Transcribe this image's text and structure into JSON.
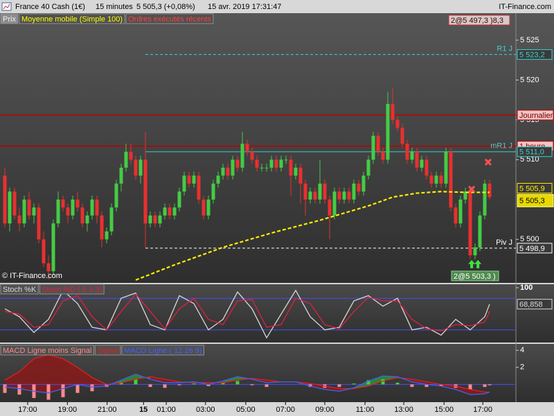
{
  "header": {
    "items": [
      "France 40 Cash (1€)",
      "15 minutes",
      "5 505,3 (+0,08%)",
      "15 avr. 2019 17:31:47"
    ],
    "site": "IT-Finance.com"
  },
  "chart_data": [
    {
      "type": "candlestick",
      "legend": [
        {
          "name": "Prix",
          "color": "#f0f0f0"
        },
        {
          "name": "Moyenne mobile (Simple 100)",
          "color": "#ffff00"
        },
        {
          "name": "Ordres exécutés récents",
          "color": "#ff4040"
        }
      ],
      "xlim": [
        -1,
        105.43
      ],
      "ylim": [
        5494.8,
        5528.3
      ],
      "yticks": [
        {
          "value": 5500,
          "label": "5 500"
        },
        {
          "value": 5510,
          "label": "5 510"
        },
        {
          "value": 5515,
          "label": "5 515"
        },
        {
          "value": 5520,
          "label": "5 520"
        },
        {
          "value": 5525,
          "label": "5 525"
        }
      ],
      "up_color": "#44cc44",
      "down_color": "#e83030",
      "candles": [
        [
          5508,
          5509,
          5501.5,
          5502
        ],
        [
          5502,
          5506.5,
          5501,
          5506
        ],
        [
          5506,
          5506.5,
          5502.5,
          5503
        ],
        [
          5503,
          5504,
          5501,
          5502
        ],
        [
          5502,
          5505.5,
          5501.5,
          5505
        ],
        [
          5505,
          5506,
          5502.5,
          5503
        ],
        [
          5503,
          5504.5,
          5502,
          5504
        ],
        [
          5504,
          5504.5,
          5499.5,
          5500
        ],
        [
          5500,
          5501,
          5496.5,
          5497
        ],
        [
          5497,
          5498,
          5495,
          5496
        ],
        [
          5496,
          5502.5,
          5495.5,
          5502
        ],
        [
          5502,
          5506,
          5501.5,
          5505
        ],
        [
          5505,
          5505.5,
          5503.5,
          5504
        ],
        [
          5504,
          5504.5,
          5502,
          5503
        ],
        [
          5503,
          5505.5,
          5502.5,
          5505
        ],
        [
          5505,
          5506,
          5503.5,
          5504
        ],
        [
          5504,
          5504.5,
          5501.5,
          5502
        ],
        [
          5502,
          5503.5,
          5501,
          5503
        ],
        [
          5503,
          5505.5,
          5502.5,
          5505
        ],
        [
          5505,
          5505.5,
          5502,
          5503
        ],
        [
          5503,
          5503.5,
          5499,
          5500
        ],
        [
          5500,
          5501.5,
          5499.5,
          5501
        ],
        [
          5501,
          5504.5,
          5500.5,
          5504
        ],
        [
          5504,
          5507.5,
          5503.5,
          5507
        ],
        [
          5507,
          5509.5,
          5506,
          5509
        ],
        [
          5509,
          5512,
          5508.5,
          5511
        ],
        [
          5511,
          5512,
          5509.5,
          5510
        ],
        [
          5510,
          5510.5,
          5507.5,
          5508
        ],
        [
          5508,
          5510.5,
          5507,
          5510
        ],
        [
          5510,
          5513.5,
          5499,
          5502
        ],
        [
          5502,
          5503.5,
          5501.5,
          5503
        ],
        [
          5503,
          5503.5,
          5501.5,
          5502
        ],
        [
          5502,
          5503.5,
          5501.5,
          5503
        ],
        [
          5503,
          5504.5,
          5502.5,
          5504
        ],
        [
          5504,
          5504.5,
          5502.5,
          5503
        ],
        [
          5503,
          5504.5,
          5502.5,
          5504
        ],
        [
          5504,
          5506.5,
          5503.5,
          5506
        ],
        [
          5506,
          5508.5,
          5505.5,
          5508
        ],
        [
          5508,
          5508.5,
          5506.5,
          5507
        ],
        [
          5507,
          5508.5,
          5506.5,
          5508
        ],
        [
          5508,
          5508.5,
          5504.5,
          5505
        ],
        [
          5505,
          5505.5,
          5502.5,
          5503
        ],
        [
          5503,
          5505.5,
          5502.5,
          5505
        ],
        [
          5505,
          5507.5,
          5504.5,
          5507
        ],
        [
          5507,
          5508.5,
          5506.5,
          5508
        ],
        [
          5508,
          5509.5,
          5507.5,
          5509
        ],
        [
          5509,
          5509.5,
          5507.5,
          5508
        ],
        [
          5508,
          5510.5,
          5507.5,
          5510
        ],
        [
          5510,
          5510.5,
          5508.5,
          5509
        ],
        [
          5509,
          5513.5,
          5508.5,
          5512
        ],
        [
          5512,
          5512.5,
          5510.5,
          5511
        ],
        [
          5511,
          5511.5,
          5509.5,
          5510
        ],
        [
          5510,
          5510.5,
          5508.5,
          5509
        ],
        [
          5509,
          5509.5,
          5508.5,
          5509
        ],
        [
          5509,
          5509.5,
          5508.5,
          5509
        ],
        [
          5509,
          5510.5,
          5508.5,
          5510
        ],
        [
          5510,
          5510.5,
          5508.5,
          5509
        ],
        [
          5509,
          5510.5,
          5508.5,
          5510
        ],
        [
          5510,
          5510.5,
          5509.5,
          5510
        ],
        [
          5510,
          5510.5,
          5505.5,
          5508
        ],
        [
          5508,
          5509.5,
          5507.5,
          5509
        ],
        [
          5509,
          5509.5,
          5504.5,
          5507
        ],
        [
          5507,
          5507.5,
          5503,
          5505
        ],
        [
          5505,
          5506.5,
          5504.5,
          5506
        ],
        [
          5506,
          5506.5,
          5504.5,
          5505
        ],
        [
          5505,
          5510,
          5504.5,
          5507
        ],
        [
          5507,
          5507.5,
          5504.5,
          5505
        ],
        [
          5505,
          5505.5,
          5500,
          5503
        ],
        [
          5503,
          5506.5,
          5502.5,
          5506
        ],
        [
          5506,
          5506.5,
          5504.5,
          5505
        ],
        [
          5505,
          5506.5,
          5504.5,
          5506
        ],
        [
          5506,
          5506.5,
          5504.5,
          5505
        ],
        [
          5505,
          5507.5,
          5504.5,
          5507
        ],
        [
          5507,
          5507.5,
          5505.5,
          5506
        ],
        [
          5506,
          5508.5,
          5505.5,
          5508
        ],
        [
          5508,
          5510.5,
          5507.5,
          5510
        ],
        [
          5510,
          5513.5,
          5509.5,
          5513
        ],
        [
          5513,
          5513.5,
          5510.5,
          5511
        ],
        [
          5511,
          5511.5,
          5509.5,
          5510
        ],
        [
          5510,
          5518.5,
          5509.5,
          5517
        ],
        [
          5517,
          5519,
          5514.5,
          5515
        ],
        [
          5515,
          5515.5,
          5513.5,
          5514
        ],
        [
          5514,
          5514.5,
          5511.5,
          5512
        ],
        [
          5512,
          5512.5,
          5509.5,
          5510
        ],
        [
          5510,
          5511.5,
          5509.5,
          5511
        ],
        [
          5511,
          5511.5,
          5508.5,
          5509
        ],
        [
          5509,
          5510.5,
          5508.5,
          5510
        ],
        [
          5510,
          5510.5,
          5507.5,
          5508
        ],
        [
          5508,
          5508.5,
          5506.5,
          5507
        ],
        [
          5507,
          5508.5,
          5506.5,
          5508
        ],
        [
          5508,
          5508.5,
          5506.5,
          5507
        ],
        [
          5507,
          5511.5,
          5506.5,
          5511
        ],
        [
          5511,
          5511.5,
          5503.5,
          5504
        ],
        [
          5504,
          5504.5,
          5501.5,
          5502
        ],
        [
          5502,
          5505.5,
          5501.5,
          5505
        ],
        [
          5505,
          5506.5,
          5504.5,
          5506
        ],
        [
          5506,
          5506.5,
          5497.5,
          5498
        ],
        [
          5498,
          5499.5,
          5497.5,
          5499
        ],
        [
          5499,
          5503.5,
          5498.5,
          5503
        ],
        [
          5503,
          5507.5,
          5502.5,
          5507
        ],
        [
          5507,
          5507.5,
          5505,
          5505.3
        ]
      ],
      "moving_average": {
        "color": "#ffee00",
        "x": [
          27,
          35,
          45,
          55,
          65,
          75,
          80,
          85,
          90,
          95,
          100
        ],
        "values": [
          5494.9,
          5496.8,
          5499,
          5500.8,
          5502.4,
          5504.2,
          5505.3,
          5505.8,
          5506,
          5505.9,
          5505.9
        ],
        "last_label": "5 505,9"
      },
      "last_price": {
        "value": 5505.3,
        "label": "5 505,3"
      },
      "levels": [
        {
          "name": "R1 J",
          "value": 5523.2,
          "label": "5 523,2",
          "color": "#40d0d0",
          "style": "dashed"
        },
        {
          "name": "Journalier",
          "value": 5515.6,
          "color": "#c00000",
          "style": "solid"
        },
        {
          "name": "1 heure",
          "value": 5511.7,
          "color": "#c00000",
          "style": "solid"
        },
        {
          "name": "mR1 J",
          "value": 5511.0,
          "label": "5 511,0",
          "color": "#40d0d0",
          "style": "solid"
        },
        {
          "name": "Piv J",
          "value": 5498.9,
          "label": "5 498,9",
          "color": "#ffffff",
          "style": "dashed"
        }
      ],
      "sells": {
        "color": "#ff5050",
        "x": [
          96.3,
          99.7
        ],
        "values": [
          5506.3,
          5509.7
        ]
      },
      "buys": {
        "color": "#40e040",
        "x": [
          96.3,
          97.6
        ],
        "values": [
          5496.9,
          5496.9
        ]
      },
      "order_labels": [
        "2@5 497,3 )8,3",
        "2@5 503,3 )"
      ],
      "copyright": "© IT-Finance.com"
    },
    {
      "type": "line",
      "xlim": [
        -1,
        105.43
      ],
      "ylim": [
        0,
        100
      ],
      "yticks": [
        100
      ],
      "levels": [
        20,
        80
      ],
      "level_color": "#4050ff",
      "x": [
        0,
        3,
        6,
        9,
        12,
        15,
        18,
        21,
        24,
        27,
        30,
        33,
        36,
        39,
        42,
        45,
        48,
        51,
        54,
        57,
        60,
        63,
        66,
        69,
        72,
        75,
        78,
        81,
        84,
        87,
        90,
        93,
        96,
        99,
        100
      ],
      "series": [
        {
          "name": "Stoch %K",
          "color": "#d8d8d8",
          "values": [
            60,
            45,
            15,
            40,
            95,
            70,
            25,
            20,
            80,
            90,
            30,
            20,
            85,
            70,
            20,
            40,
            92,
            60,
            5,
            50,
            95,
            45,
            20,
            25,
            75,
            85,
            65,
            80,
            20,
            25,
            10,
            40,
            20,
            45,
            68.858
          ],
          "last_label": "68,858"
        },
        {
          "name": "Stoch %D ( 5 3 3)",
          "color": "#e02040",
          "values": [
            55,
            50,
            25,
            30,
            75,
            85,
            45,
            20,
            55,
            88,
            55,
            22,
            60,
            80,
            40,
            30,
            75,
            78,
            25,
            30,
            80,
            70,
            30,
            22,
            55,
            82,
            75,
            75,
            40,
            22,
            18,
            30,
            28,
            35,
            55
          ]
        }
      ]
    },
    {
      "type": "macd",
      "xlim": [
        -1,
        105.43
      ],
      "ylim": [
        -1.92,
        4.67
      ],
      "yticks": [
        2,
        4
      ],
      "levels": [
        0
      ],
      "level_color": "#4050ff",
      "x": [
        0,
        3,
        6,
        9,
        12,
        15,
        18,
        21,
        24,
        27,
        30,
        33,
        36,
        39,
        42,
        45,
        48,
        51,
        54,
        57,
        60,
        63,
        66,
        69,
        72,
        75,
        78,
        81,
        84,
        87,
        90,
        93,
        96,
        99,
        100
      ],
      "series": [
        {
          "name": "MACD Ligne moins Signal",
          "color": "#ff8a8a",
          "positive_color": "#40d040",
          "values": [
            -1.0,
            -1.2,
            -1.6,
            -1.8,
            -1.5,
            -1.0,
            -0.8,
            -0.3,
            0.3,
            0.6,
            -0.3,
            -0.4,
            -0.1,
            0.1,
            -0.2,
            0.2,
            0.4,
            -0.1,
            -0.3,
            0,
            0,
            -0.3,
            -0.4,
            -0.3,
            0.1,
            0.5,
            0.6,
            0.2,
            -0.3,
            -0.3,
            -0.2,
            -0.4,
            -0.6,
            -0.3,
            -0.1
          ]
        },
        {
          "name": "Signal",
          "color": "#e02020",
          "values": [
            0.5,
            1.5,
            3.0,
            3.5,
            3.0,
            2.0,
            0.8,
            0.0,
            0.2,
            0.6,
            0.9,
            0.6,
            0.3,
            0.2,
            0.2,
            0.2,
            0.5,
            0.7,
            0.5,
            0.3,
            0.3,
            0.1,
            -0.2,
            -0.5,
            -0.5,
            -0.2,
            0.4,
            0.8,
            0.6,
            0.3,
            0.0,
            -0.2,
            -0.6,
            -0.9,
            -0.9
          ]
        },
        {
          "name": "MACD Ligne ( 12 26 9)",
          "color": "#4060ff",
          "values": [
            -0.3,
            -0.5,
            -0.8,
            -1.0,
            -0.5,
            0.0,
            -0.3,
            -0.2,
            0.5,
            1.2,
            0.6,
            0.2,
            0.2,
            0.3,
            0.0,
            0.4,
            0.9,
            0.6,
            0.2,
            0.3,
            0.3,
            -0.2,
            -0.6,
            -0.8,
            -0.4,
            0.4,
            1.0,
            0.9,
            0.3,
            0.0,
            -0.2,
            -0.6,
            -1.2,
            -1.1,
            -0.9
          ]
        }
      ],
      "xticks": [
        {
          "value": 4.7,
          "label": "17:00"
        },
        {
          "value": 12.9,
          "label": "19:00"
        },
        {
          "value": 21.1,
          "label": "21:00"
        },
        {
          "value": 28.6,
          "label": "15"
        },
        {
          "value": 33.3,
          "label": "01:00"
        },
        {
          "value": 41.4,
          "label": "03:00"
        },
        {
          "value": 49.7,
          "label": "05:00"
        },
        {
          "value": 57.9,
          "label": "07:00"
        },
        {
          "value": 66,
          "label": "09:00"
        },
        {
          "value": 74.3,
          "label": "11:00"
        },
        {
          "value": 82.3,
          "label": "13:00"
        },
        {
          "value": 90.6,
          "label": "15:00"
        },
        {
          "value": 98.6,
          "label": "17:00"
        }
      ]
    }
  ]
}
